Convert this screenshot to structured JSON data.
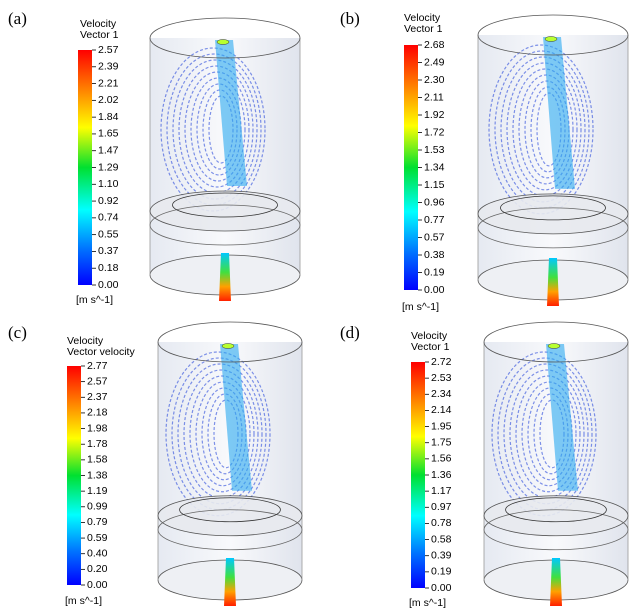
{
  "panels": [
    {
      "label": "(a)",
      "title": "Velocity",
      "subtitle": "Vector 1",
      "ticks": [
        "2.57",
        "2.39",
        "2.21",
        "2.02",
        "1.84",
        "1.65",
        "1.47",
        "1.29",
        "1.10",
        "0.92",
        "0.74",
        "0.55",
        "0.37",
        "0.18",
        "0.00"
      ],
      "unit": "[m s^-1]"
    },
    {
      "label": "(b)",
      "title": "Velocity",
      "subtitle": "Vector 1",
      "ticks": [
        "2.68",
        "2.49",
        "2.30",
        "2.11",
        "1.92",
        "1.72",
        "1.53",
        "1.34",
        "1.15",
        "0.96",
        "0.77",
        "0.57",
        "0.38",
        "0.19",
        "0.00"
      ],
      "unit": "[m s^-1]"
    },
    {
      "label": "(c)",
      "title": "Velocity",
      "subtitle": "Vector velocity",
      "ticks": [
        "2.77",
        "2.57",
        "2.37",
        "2.18",
        "1.98",
        "1.78",
        "1.58",
        "1.38",
        "1.19",
        "0.99",
        "0.79",
        "0.59",
        "0.40",
        "0.20",
        "0.00"
      ],
      "unit": "[m s^-1]"
    },
    {
      "label": "(d)",
      "title": "Velocity",
      "subtitle": "Vector 1",
      "ticks": [
        "2.72",
        "2.53",
        "2.34",
        "2.14",
        "1.95",
        "1.75",
        "1.56",
        "1.36",
        "1.17",
        "0.97",
        "0.78",
        "0.58",
        "0.39",
        "0.19",
        "0.00"
      ],
      "unit": "[m s^-1]"
    }
  ]
}
